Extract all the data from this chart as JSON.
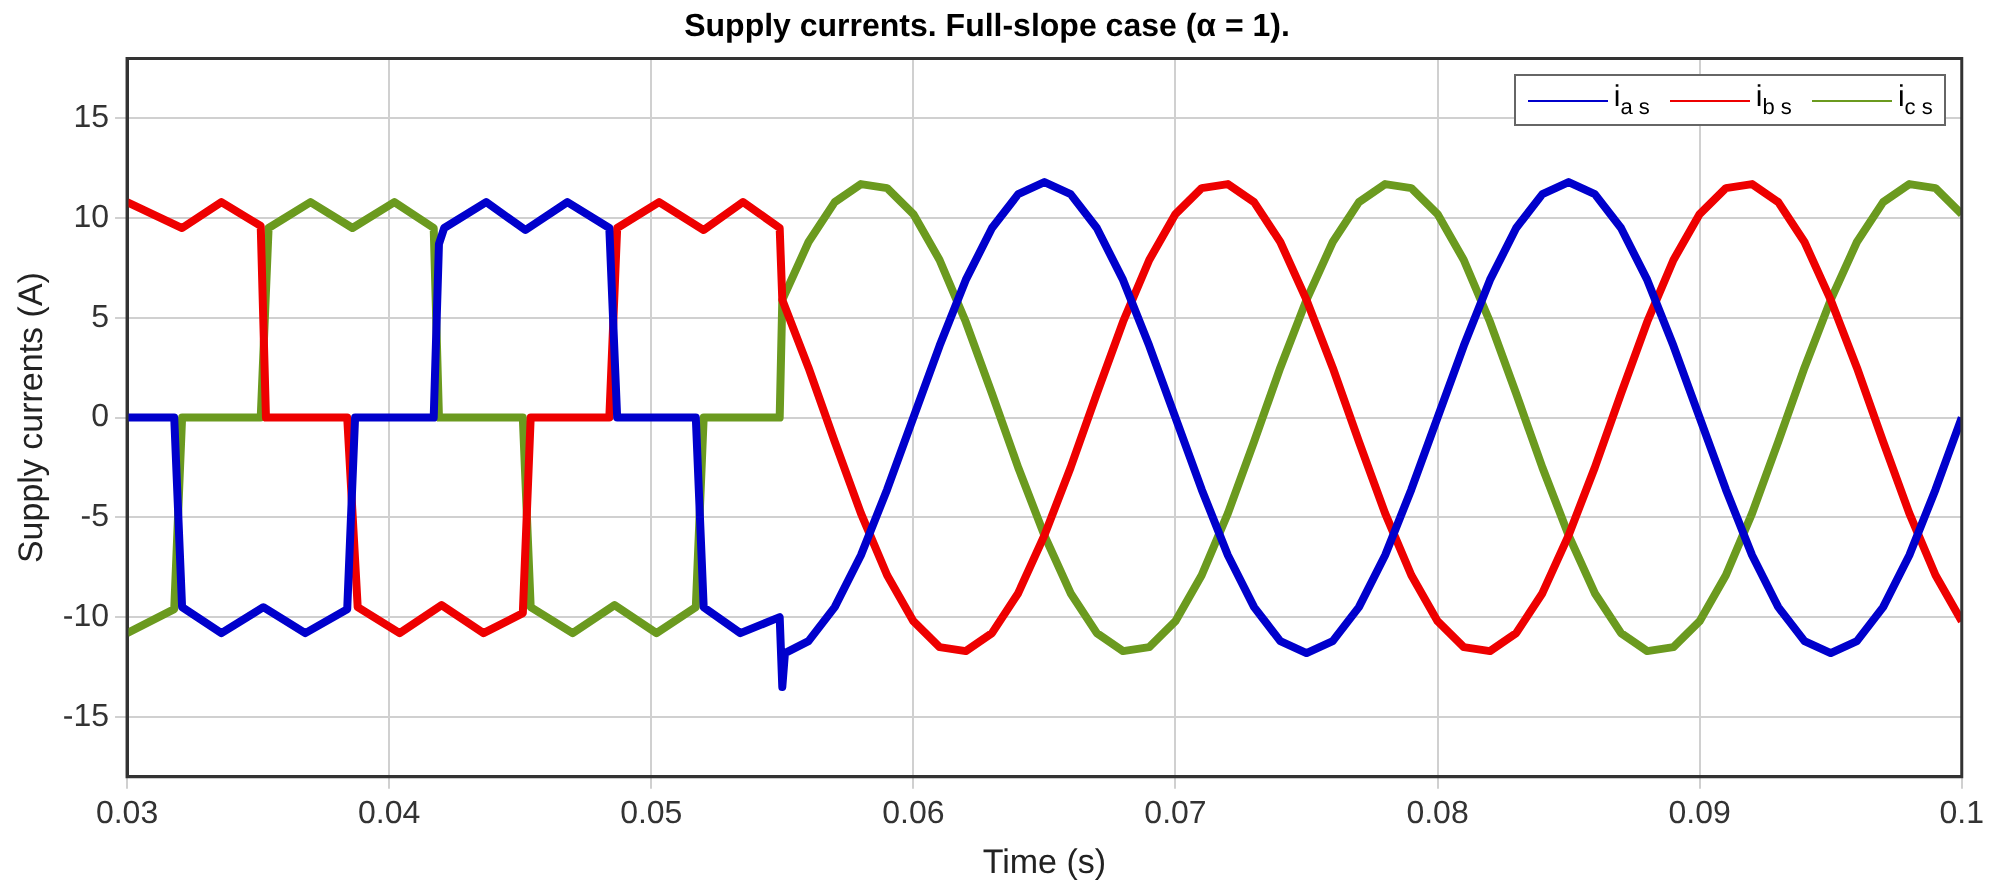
{
  "chart_data": {
    "type": "line",
    "title": "Supply currents. Full-slope case (α = 1).",
    "xlabel": "Time (s)",
    "ylabel": "Supply currents (A)",
    "xlim": [
      0.03,
      0.1
    ],
    "xticks": [
      0.03,
      0.04,
      0.05,
      0.06,
      0.07,
      0.08,
      0.09,
      0.1
    ],
    "ylim": [
      -18,
      18
    ],
    "yticks": [
      -15,
      -10,
      -5,
      0,
      5,
      10,
      15
    ],
    "grid": true,
    "legend": "top right",
    "marker": "none",
    "line_style": "solid",
    "series": [
      {
        "name": "i$_{a s}$",
        "color": "#0000cc",
        "x": [
          0.03,
          0.0318,
          0.0321,
          0.0336,
          0.0352,
          0.0368,
          0.0384,
          0.0387,
          0.0417,
          0.0419,
          0.0421,
          0.0437,
          0.0452,
          0.0468,
          0.0484,
          0.0487,
          0.0517,
          0.052,
          0.0534,
          0.0549,
          0.055,
          0.0551,
          0.056,
          0.057,
          0.058,
          0.059,
          0.06,
          0.061,
          0.062,
          0.063,
          0.064,
          0.065,
          0.066,
          0.067,
          0.068,
          0.069,
          0.07,
          0.071,
          0.072,
          0.073,
          0.074,
          0.075,
          0.076,
          0.077,
          0.078,
          0.079,
          0.08,
          0.081,
          0.082,
          0.083,
          0.084,
          0.085,
          0.086,
          0.087,
          0.088,
          0.089,
          0.09,
          0.091,
          0.092,
          0.093,
          0.094,
          0.095,
          0.096,
          0.097,
          0.098,
          0.099,
          0.1
        ],
        "values": [
          0,
          0,
          -9.5,
          -10.8,
          -9.5,
          -10.8,
          -9.6,
          0,
          0,
          8.7,
          9.5,
          10.8,
          9.4,
          10.8,
          9.5,
          0,
          0,
          -9.5,
          -10.8,
          -10,
          -13.5,
          -11.8,
          -11.2,
          -9.5,
          -6.9,
          -3.6,
          0,
          3.6,
          6.9,
          9.5,
          11.2,
          11.8,
          11.2,
          9.5,
          6.9,
          3.6,
          0,
          -3.6,
          -6.9,
          -9.5,
          -11.2,
          -11.8,
          -11.2,
          -9.5,
          -6.9,
          -3.6,
          0,
          3.6,
          6.9,
          9.5,
          11.2,
          11.8,
          11.2,
          9.5,
          6.9,
          3.6,
          0,
          -3.6,
          -6.9,
          -9.5,
          -11.2,
          -11.8,
          -11.2,
          -9.5,
          -6.9,
          -3.6,
          0
        ]
      },
      {
        "name": "i$_{b s}$",
        "color": "#ee0000",
        "x": [
          0.03,
          0.0321,
          0.0336,
          0.0351,
          0.0353,
          0.0384,
          0.0388,
          0.0404,
          0.042,
          0.0436,
          0.0451,
          0.0454,
          0.0484,
          0.0487,
          0.0503,
          0.052,
          0.0535,
          0.0549,
          0.055,
          0.056,
          0.057,
          0.058,
          0.059,
          0.06,
          0.061,
          0.062,
          0.063,
          0.064,
          0.065,
          0.066,
          0.067,
          0.068,
          0.069,
          0.07,
          0.071,
          0.072,
          0.073,
          0.074,
          0.075,
          0.076,
          0.077,
          0.078,
          0.079,
          0.08,
          0.081,
          0.082,
          0.083,
          0.084,
          0.085,
          0.086,
          0.087,
          0.088,
          0.089,
          0.09,
          0.091,
          0.092,
          0.093,
          0.094,
          0.095,
          0.096,
          0.097,
          0.098,
          0.099,
          0.1
        ],
        "values": [
          10.8,
          9.5,
          10.8,
          9.6,
          0,
          0,
          -9.5,
          -10.8,
          -9.4,
          -10.8,
          -9.8,
          0,
          0,
          9.5,
          10.8,
          9.4,
          10.8,
          9.5,
          5.9,
          2.5,
          -1.2,
          -4.8,
          -7.9,
          -10.2,
          -11.5,
          -11.7,
          -10.8,
          -8.8,
          -5.9,
          -2.5,
          1.2,
          4.8,
          7.9,
          10.2,
          11.5,
          11.7,
          10.8,
          8.8,
          5.9,
          2.5,
          -1.2,
          -4.8,
          -7.9,
          -10.2,
          -11.5,
          -11.7,
          -10.8,
          -8.8,
          -5.9,
          -2.5,
          1.2,
          4.8,
          7.9,
          10.2,
          11.5,
          11.7,
          10.8,
          8.8,
          5.9,
          2.5,
          -1.2,
          -4.8,
          -7.9,
          -10.2
        ]
      },
      {
        "name": "i$_{c s}$",
        "color": "#6b9a1f",
        "x": [
          0.03,
          0.0318,
          0.0321,
          0.0351,
          0.0354,
          0.037,
          0.0386,
          0.0402,
          0.0417,
          0.0419,
          0.0451,
          0.0454,
          0.047,
          0.0486,
          0.0502,
          0.0517,
          0.052,
          0.0549,
          0.055,
          0.056,
          0.057,
          0.058,
          0.059,
          0.06,
          0.061,
          0.062,
          0.063,
          0.064,
          0.065,
          0.066,
          0.067,
          0.068,
          0.069,
          0.07,
          0.071,
          0.072,
          0.073,
          0.074,
          0.075,
          0.076,
          0.077,
          0.078,
          0.079,
          0.08,
          0.081,
          0.082,
          0.083,
          0.084,
          0.085,
          0.086,
          0.087,
          0.088,
          0.089,
          0.09,
          0.091,
          0.092,
          0.093,
          0.094,
          0.095,
          0.096,
          0.097,
          0.098,
          0.099,
          0.1
        ],
        "values": [
          -10.8,
          -9.6,
          0,
          0,
          9.5,
          10.8,
          9.5,
          10.8,
          9.5,
          0,
          0,
          -9.5,
          -10.8,
          -9.4,
          -10.8,
          -9.5,
          0,
          0,
          5.9,
          8.8,
          10.8,
          11.7,
          11.5,
          10.2,
          7.9,
          4.8,
          1.2,
          -2.5,
          -5.9,
          -8.8,
          -10.8,
          -11.7,
          -11.5,
          -10.2,
          -7.9,
          -4.8,
          -1.2,
          2.5,
          5.9,
          8.8,
          10.8,
          11.7,
          11.5,
          10.2,
          7.9,
          4.8,
          1.2,
          -2.5,
          -5.9,
          -8.8,
          -10.8,
          -11.7,
          -11.5,
          -10.2,
          -7.9,
          -4.8,
          -1.2,
          2.5,
          5.9,
          8.8,
          10.8,
          11.7,
          11.5,
          10.2
        ]
      }
    ]
  }
}
